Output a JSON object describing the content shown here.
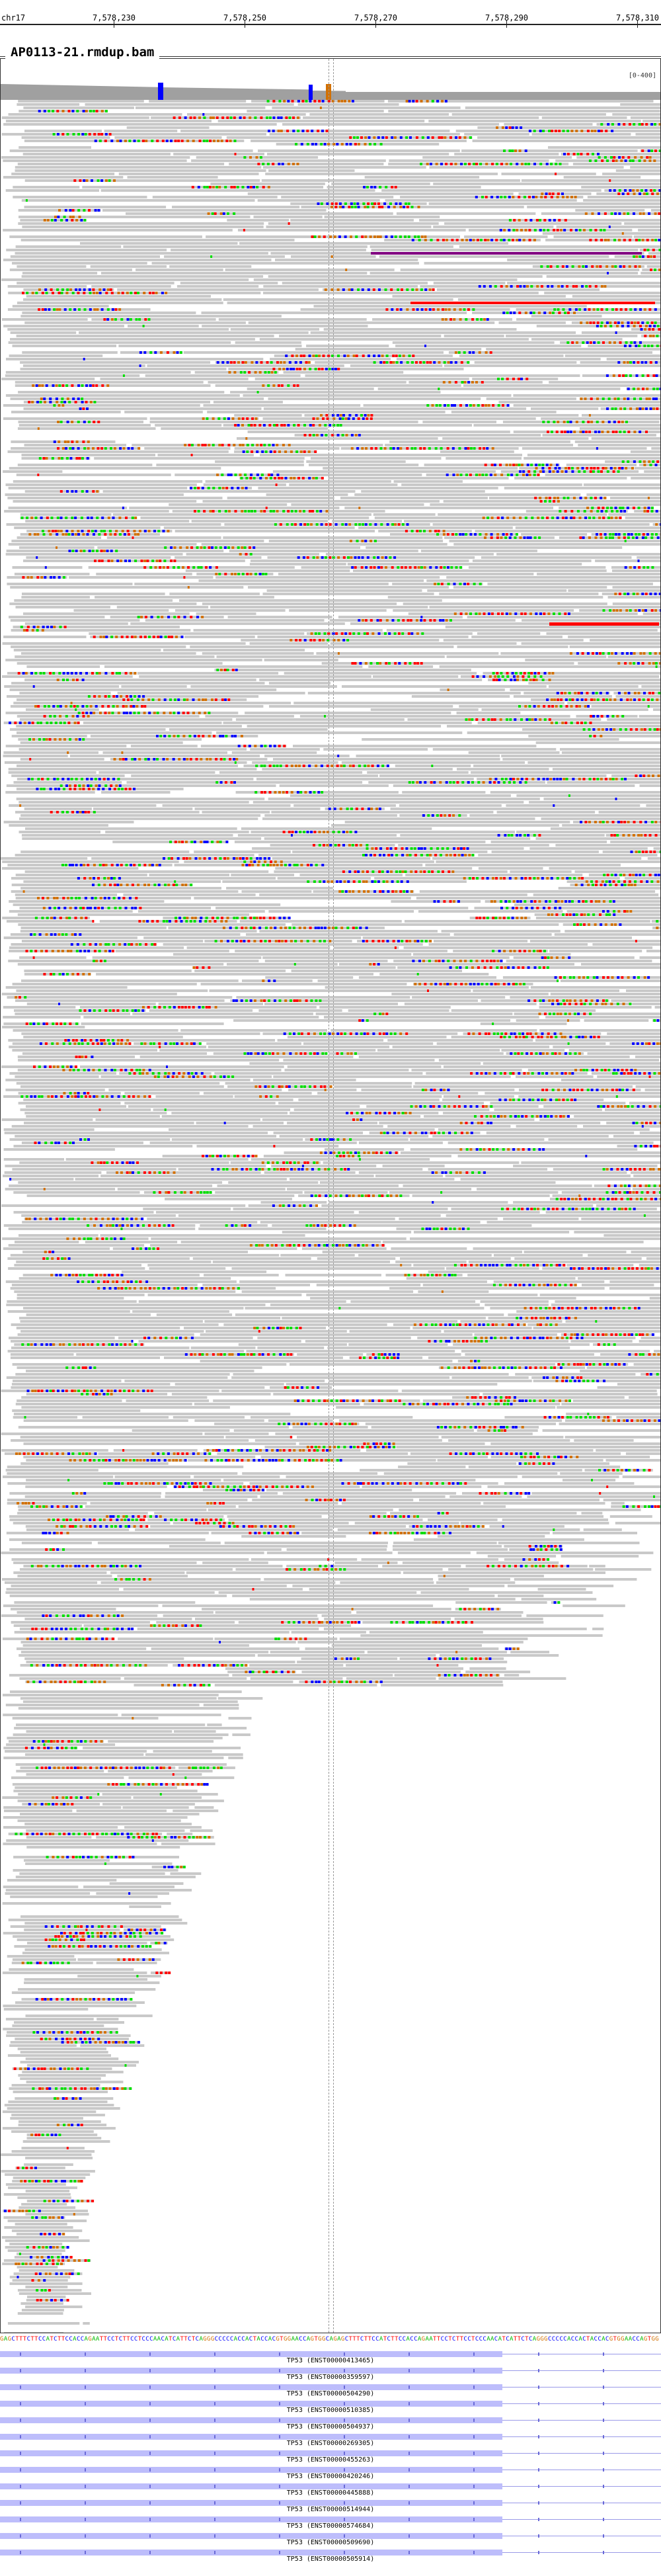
{
  "ruler": {
    "chromosome": "chr17",
    "ticks": [
      "7,578,230",
      "7,578,250",
      "7,578,270",
      "7,578,290",
      "7,578,310"
    ]
  },
  "panel": {
    "title": "AP0113-21.rmdup.bam",
    "coverage_scale": "[0-400]"
  },
  "reference_sequence": "GAGCTTTCTTCCATCTTCCACCAGAATTCCTCTTCCTCCCAACATCATTCTCAGGGCCCCCACCACTACCACGTGGAACCAGTGGCA",
  "transcripts": [
    "TP53 (ENST00000413465)",
    "TP53 (ENST00000359597)",
    "TP53 (ENST00000504290)",
    "TP53 (ENST00000510385)",
    "TP53 (ENST00000504937)",
    "TP53 (ENST00000269305)",
    "TP53 (ENST00000455263)",
    "TP53 (ENST00000420246)",
    "TP53 (ENST00000445888)",
    "TP53 (ENST00000514944)",
    "TP53 (ENST00000574684)",
    "TP53 (ENST00000509690)",
    "TP53 (ENST00000505914)"
  ],
  "colors": {
    "read": "#c9c9c9",
    "mismatch_A": "#00dd00",
    "mismatch_C": "#0000ff",
    "mismatch_G": "#d17105",
    "mismatch_T": "#ff0000",
    "insertion": "#800080",
    "transcript": "#bdbdfb"
  }
}
